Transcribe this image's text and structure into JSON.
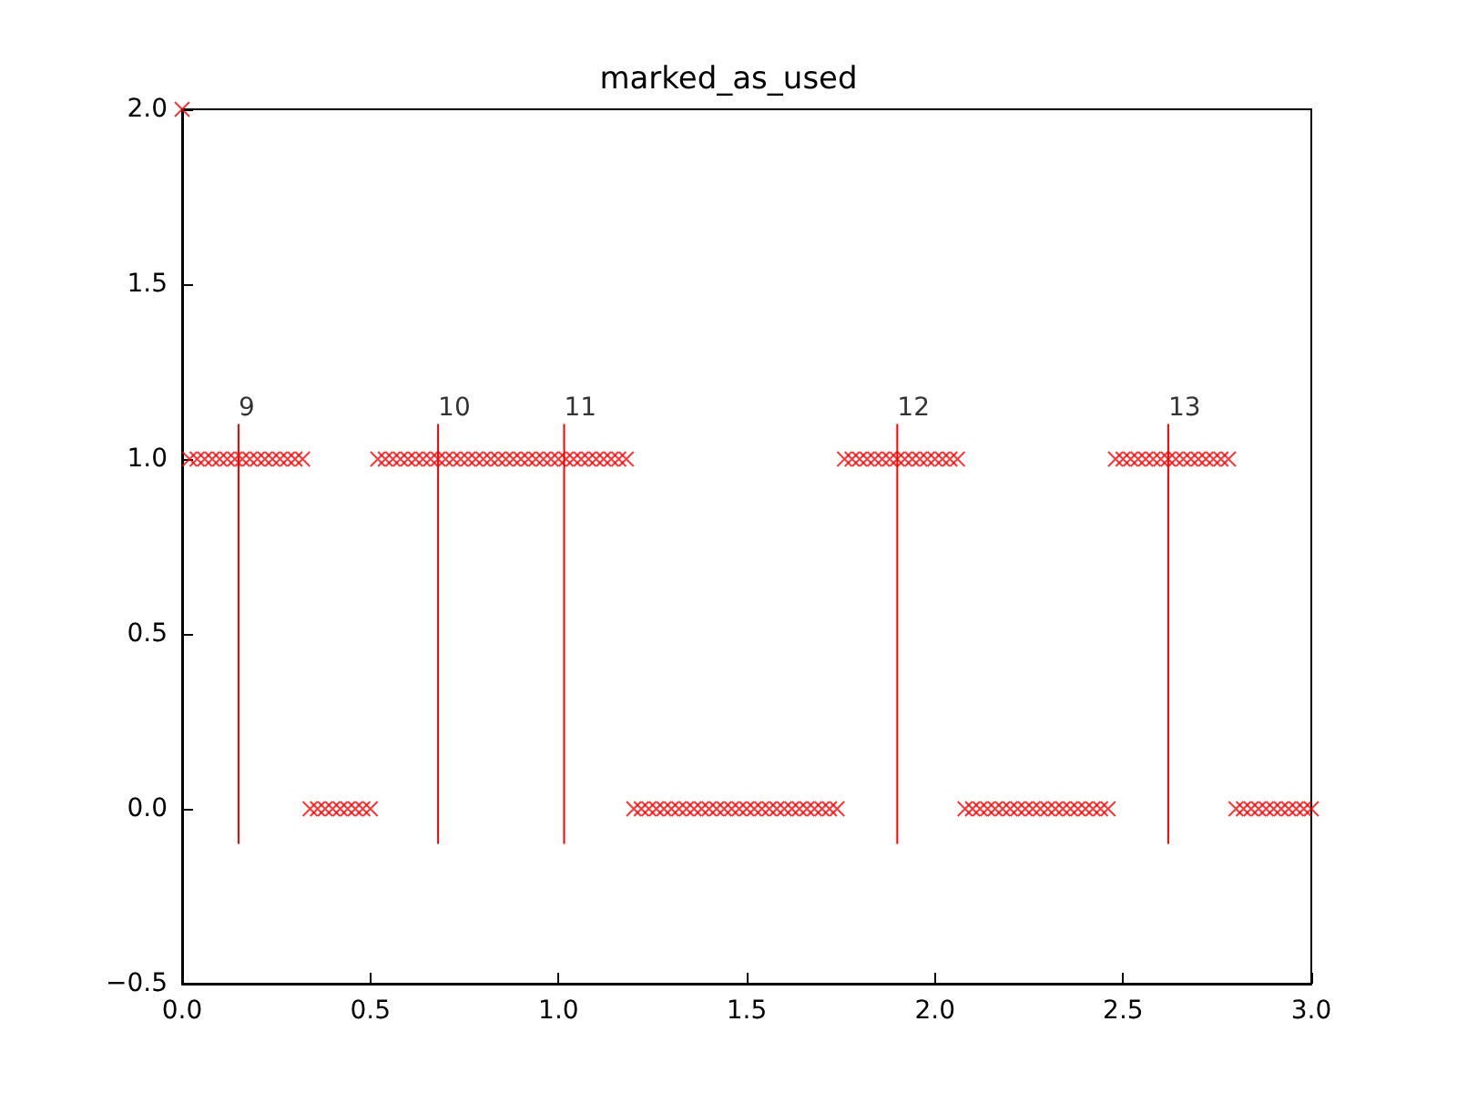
{
  "chart_data": {
    "type": "scatter",
    "title": "marked_as_used",
    "xlim": [
      0,
      3
    ],
    "xticks": [
      {
        "value": 0,
        "label": "0.0"
      },
      {
        "value": 0.5,
        "label": "0.5"
      },
      {
        "value": 1,
        "label": "1.0"
      },
      {
        "value": 1.5,
        "label": "1.5"
      },
      {
        "value": 2,
        "label": "2.0"
      },
      {
        "value": 2.5,
        "label": "2.5"
      },
      {
        "value": 3,
        "label": "3.0"
      }
    ],
    "ylim": [
      -0.5,
      2
    ],
    "yticks": [
      {
        "value": -0.5,
        "label": "−0.5"
      },
      {
        "value": 0,
        "label": "0.0"
      },
      {
        "value": 0.5,
        "label": "0.5"
      },
      {
        "value": 1,
        "label": "1.0"
      },
      {
        "value": 1.5,
        "label": "1.5"
      },
      {
        "value": 2,
        "label": "2.0"
      }
    ],
    "grid": false,
    "marker": "cross",
    "series": [
      {
        "color": "#ff0000",
        "x": [
          0,
          0.02,
          0.04,
          0.06,
          0.08,
          0.1,
          0.12,
          0.14,
          0.16,
          0.18,
          0.2,
          0.22,
          0.24,
          0.26,
          0.28,
          0.3,
          0.32,
          0.34,
          0.36,
          0.38,
          0.4,
          0.42,
          0.44,
          0.46,
          0.48,
          0.5,
          0.52,
          0.54,
          0.56,
          0.58,
          0.6,
          0.62,
          0.64,
          0.66,
          0.68,
          0.7,
          0.72,
          0.74,
          0.76,
          0.78,
          0.8,
          0.82,
          0.84,
          0.86,
          0.88,
          0.9,
          0.92,
          0.94,
          0.96,
          0.98,
          1,
          1.02,
          1.04,
          1.06,
          1.08,
          1.1,
          1.12,
          1.14,
          1.16,
          1.18,
          1.2,
          1.22,
          1.24,
          1.26,
          1.28,
          1.3,
          1.32,
          1.34,
          1.36,
          1.38,
          1.4,
          1.42,
          1.44,
          1.46,
          1.48,
          1.5,
          1.52,
          1.54,
          1.56,
          1.58,
          1.6,
          1.62,
          1.64,
          1.66,
          1.68,
          1.7,
          1.72,
          1.74,
          1.76,
          1.78,
          1.8,
          1.82,
          1.84,
          1.86,
          1.88,
          1.9,
          1.92,
          1.94,
          1.96,
          1.98,
          2,
          2.02,
          2.04,
          2.06,
          2.08,
          2.1,
          2.12,
          2.14,
          2.16,
          2.18,
          2.2,
          2.22,
          2.24,
          2.26,
          2.28,
          2.3,
          2.32,
          2.34,
          2.36,
          2.38,
          2.4,
          2.42,
          2.44,
          2.46,
          2.48,
          2.5,
          2.52,
          2.54,
          2.56,
          2.58,
          2.6,
          2.62,
          2.64,
          2.66,
          2.68,
          2.7,
          2.72,
          2.74,
          2.76,
          2.78,
          2.8,
          2.82,
          2.84,
          2.86,
          2.88,
          2.9,
          2.92,
          2.94,
          2.96,
          2.98,
          3
        ],
        "values": [
          2,
          1,
          1,
          1,
          1,
          1,
          1,
          1,
          1,
          1,
          1,
          1,
          1,
          1,
          1,
          1,
          1,
          0,
          0,
          0,
          0,
          0,
          0,
          0,
          0,
          0,
          1,
          1,
          1,
          1,
          1,
          1,
          1,
          1,
          1,
          1,
          1,
          1,
          1,
          1,
          1,
          1,
          1,
          1,
          1,
          1,
          1,
          1,
          1,
          1,
          1,
          1,
          1,
          1,
          1,
          1,
          1,
          1,
          1,
          1,
          0,
          0,
          0,
          0,
          0,
          0,
          0,
          0,
          0,
          0,
          0,
          0,
          0,
          0,
          0,
          0,
          0,
          0,
          0,
          0,
          0,
          0,
          0,
          0,
          0,
          0,
          0,
          0,
          1,
          1,
          1,
          1,
          1,
          1,
          1,
          1,
          1,
          1,
          1,
          1,
          1,
          1,
          1,
          1,
          0,
          0,
          0,
          0,
          0,
          0,
          0,
          0,
          0,
          0,
          0,
          0,
          0,
          0,
          0,
          0,
          0,
          0,
          0,
          0,
          1,
          1,
          1,
          1,
          1,
          1,
          1,
          1,
          1,
          1,
          1,
          1,
          1,
          1,
          1,
          1,
          0,
          0,
          0,
          0,
          0,
          0,
          0,
          0,
          0,
          0,
          0
        ]
      },
      {
        "type": "line",
        "marker": "none",
        "color": "#ff0000",
        "x": [
          0.15,
          0.15
        ],
        "values": [
          -0.1,
          1.1
        ]
      },
      {
        "type": "line",
        "marker": "none",
        "color": "#ff0000",
        "x": [
          0.68,
          0.68
        ],
        "values": [
          -0.1,
          1.1
        ]
      },
      {
        "type": "line",
        "marker": "none",
        "color": "#ff0000",
        "x": [
          1.015,
          1.015
        ],
        "values": [
          -0.1,
          1.1
        ]
      },
      {
        "type": "line",
        "marker": "none",
        "color": "#ff0000",
        "x": [
          1.9,
          1.9
        ],
        "values": [
          -0.1,
          1.1
        ]
      },
      {
        "type": "line",
        "marker": "none",
        "color": "#ff0000",
        "x": [
          2.62,
          2.62
        ],
        "values": [
          -0.1,
          1.1
        ]
      }
    ],
    "annotations": [
      {
        "text": "9",
        "x": 0.15,
        "y": 1.1
      },
      {
        "text": "10",
        "x": 0.68,
        "y": 1.1
      },
      {
        "text": "11",
        "x": 1.015,
        "y": 1.1
      },
      {
        "text": "12",
        "x": 1.9,
        "y": 1.1
      },
      {
        "text": "13",
        "x": 2.62,
        "y": 1.1
      }
    ]
  }
}
